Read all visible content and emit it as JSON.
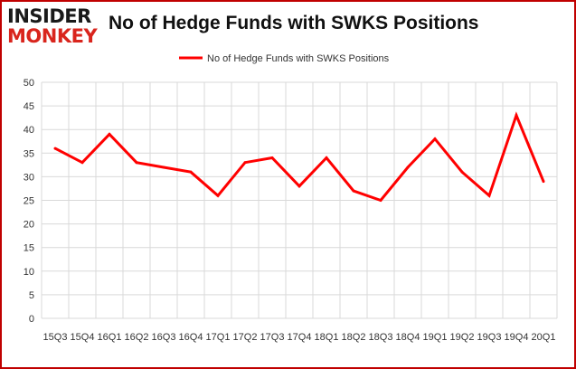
{
  "logo": {
    "line1": "INSIDER",
    "line2": "MONKEY"
  },
  "chart_data": {
    "type": "line",
    "title": "No of Hedge Funds with SWKS Positions",
    "xlabel": "",
    "ylabel": "",
    "x": [
      "2015Q3",
      "2015Q4",
      "2016Q1",
      "2016Q2",
      "2016Q3",
      "2016Q4",
      "2017Q1",
      "2017Q2",
      "2017Q3",
      "2017Q4",
      "2018Q1",
      "2018Q2",
      "2018Q3",
      "2018Q4",
      "2019Q1",
      "2019Q2",
      "2019Q3",
      "2019Q4",
      "2020Q1"
    ],
    "tick_labels": [
      "15Q3",
      "15Q4",
      "16Q1",
      "16Q2",
      "16Q3",
      "16Q4",
      "17Q1",
      "17Q2",
      "17Q3",
      "17Q4",
      "18Q1",
      "18Q2",
      "18Q3",
      "18Q4",
      "19Q1",
      "19Q2",
      "19Q3",
      "19Q4",
      "20Q1"
    ],
    "series": [
      {
        "name": "No of Hedge Funds with SWKS Positions",
        "values": [
          36,
          33,
          39,
          33,
          32,
          31,
          26,
          33,
          34,
          28,
          34,
          27,
          25,
          32,
          38,
          31,
          26,
          43,
          29
        ]
      }
    ],
    "ylim": [
      0,
      50
    ],
    "yticks": [
      0,
      5,
      10,
      15,
      20,
      25,
      30,
      35,
      40,
      45,
      50
    ],
    "grid": true,
    "legend": "top-center",
    "colors": {
      "line": "#ff0000",
      "grid": "#d9d9d9",
      "frame": "#c00000"
    }
  }
}
